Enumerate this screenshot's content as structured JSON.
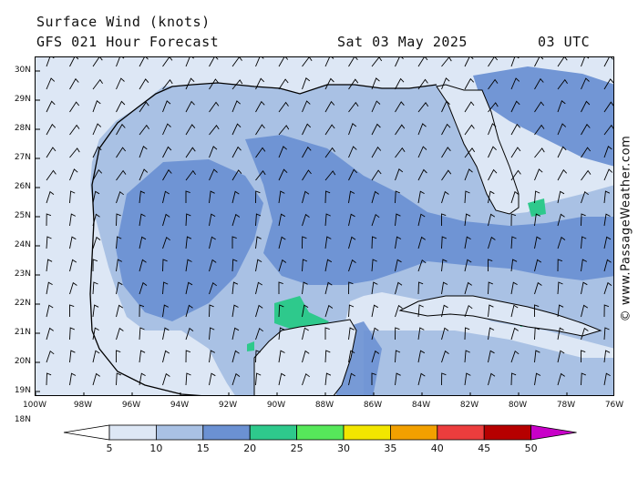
{
  "header": {
    "title": "Surface Wind (knots)",
    "forecast": "GFS 021 Hour Forecast",
    "date": "Sat 03 May 2025",
    "time": "03 UTC"
  },
  "copyright": "© www.PassageWeather.com",
  "axes": {
    "lat_labels": [
      "30N",
      "29N",
      "28N",
      "27N",
      "26N",
      "25N",
      "24N",
      "23N",
      "22N",
      "21N",
      "20N",
      "19N",
      "18N"
    ],
    "lon_labels": [
      "100W",
      "98W",
      "96W",
      "94W",
      "92W",
      "90W",
      "88W",
      "86W",
      "84W",
      "82W",
      "80W",
      "78W",
      "76W"
    ]
  },
  "legend": {
    "ticks": [
      "5",
      "10",
      "15",
      "20",
      "25",
      "30",
      "35",
      "40",
      "45",
      "50"
    ],
    "colors": [
      "#ffffff",
      "#dde7f5",
      "#a9c1e4",
      "#6b91d3",
      "#2ec98c",
      "#56e85a",
      "#f2e600",
      "#f2a000",
      "#ec3d3d",
      "#b60000",
      "#c800c8"
    ]
  },
  "map": {
    "region": "Gulf of Mexico",
    "ocean_color": "#a9c1e4",
    "land_color": "#dde7f5",
    "coast_color": "#000000"
  }
}
